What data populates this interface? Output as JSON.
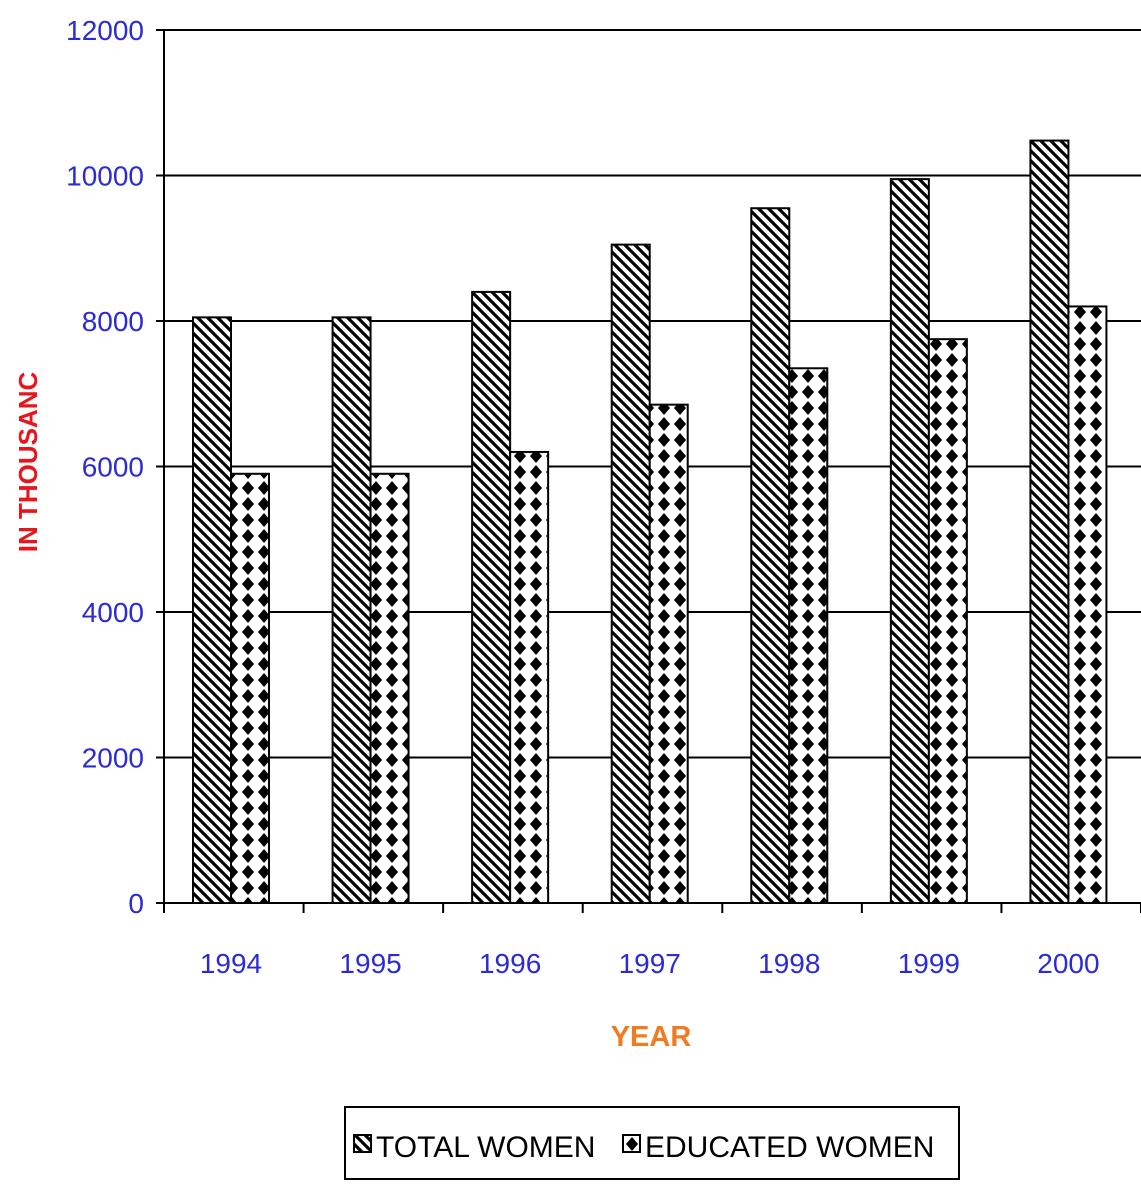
{
  "chart_data": {
    "type": "bar",
    "title": "",
    "xlabel": "YEAR",
    "ylabel": "IN THOUSANC",
    "categories": [
      "1994",
      "1995",
      "1996",
      "1997",
      "1998",
      "1999",
      "2000"
    ],
    "series": [
      {
        "name": "TOTAL WOMEN",
        "values": [
          8050,
          8050,
          8400,
          9050,
          9550,
          9950,
          10480
        ]
      },
      {
        "name": "EDUCATED WOMEN",
        "values": [
          5900,
          5900,
          6200,
          6850,
          7350,
          7750,
          8200
        ]
      }
    ],
    "ylim": [
      0,
      12000
    ],
    "yticks": [
      "0",
      "2000",
      "4000",
      "6000",
      "8000",
      "10000",
      "12000"
    ],
    "grid": true,
    "legend_position": "bottom-center",
    "colors": {
      "tick_labels": "#2b2bd6",
      "ylabel": "#e8151b",
      "xlabel": "#f07c22",
      "bar_stroke": "#000000",
      "bar_fill": "#ffffff"
    }
  }
}
